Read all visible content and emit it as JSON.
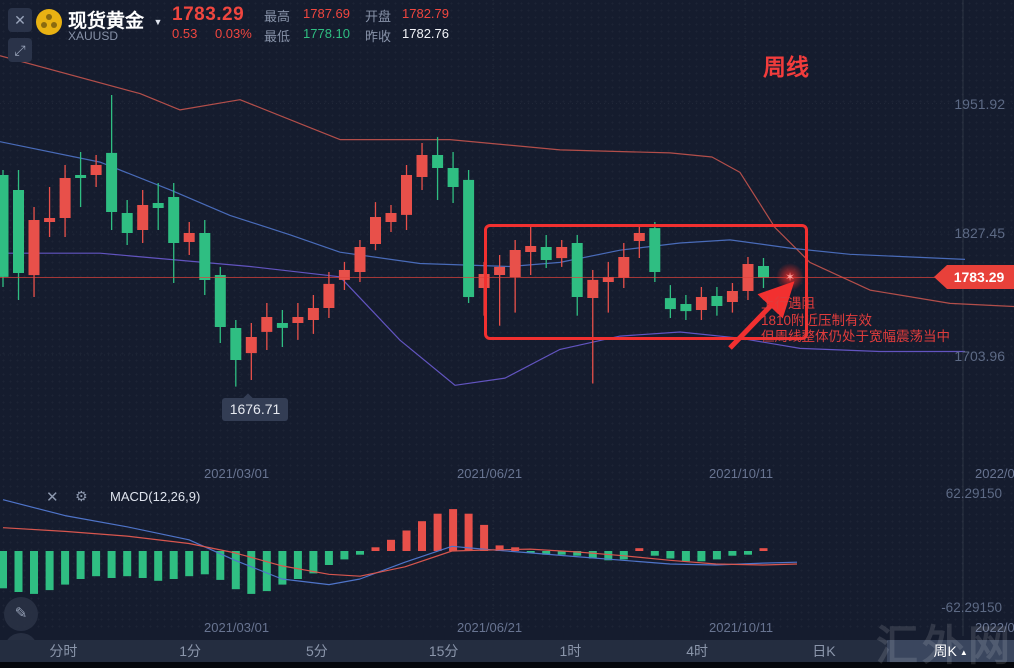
{
  "icons": {
    "close": "✕",
    "dropdown": "▼",
    "expand": "⤢",
    "gear": "⚙",
    "pencil": "✎",
    "up_triangle": "▲",
    "star": "✶"
  },
  "header": {
    "symbol_name": "现货黄金",
    "symbol_code": "XAUUSD",
    "price": "1783.29",
    "change": "0.53",
    "change_pct": "0.03%",
    "stats": [
      {
        "label": "最高",
        "value": "1787.69"
      },
      {
        "label": "最低",
        "value": "1778.10"
      },
      {
        "label": "开盘",
        "value": "1782.79"
      },
      {
        "label": "昨收",
        "value": "1782.76"
      }
    ]
  },
  "chart": {
    "period_label": "周线",
    "y_axis_labels": [
      {
        "text": "1951.92"
      },
      {
        "text": "1827.45"
      },
      {
        "text": "1703.96"
      }
    ],
    "price_tag": "1783.29",
    "low_tooltip": "1676.71",
    "x_axis_labels": [
      {
        "text": "2021/03/01"
      },
      {
        "text": "2021/06/21"
      },
      {
        "text": "2021/10/11"
      },
      {
        "text": "2022/0"
      }
    ],
    "annotation": {
      "lines": [
        "上行遇阻",
        "1810附近压制有效",
        "但周线整体仍处于宽幅震荡当中"
      ]
    }
  },
  "macd": {
    "label": "MACD(12,26,9)",
    "max": "62.29150",
    "min": "-62.29150"
  },
  "toolbar": {
    "items": [
      "分时",
      "1分",
      "5分",
      "15分",
      "1时",
      "4时",
      "日K",
      "周K"
    ],
    "selected": "周K",
    "selected_marker": "▲"
  },
  "watermark": "汇外网",
  "chart_data": {
    "type": "candlestick",
    "title": "现货黄金 XAUUSD 周线",
    "timeframe": "weekly",
    "current_price": 1783.29,
    "marked_low": 1676.71,
    "price_axis_labels": [
      1951.92,
      1827.45,
      1783.29,
      1703.96
    ],
    "x_dates": [
      "2021/03/01",
      "2021/06/21",
      "2021/10/11",
      "2022/0"
    ],
    "colors": {
      "up": "#e8504a",
      "down": "#2fbe82"
    },
    "candles": [
      [
        1883.4,
        1888.3,
        1774.0,
        1783.8
      ],
      [
        1868.8,
        1888.3,
        1761.3,
        1787.7
      ],
      [
        1785.7,
        1852.2,
        1764.2,
        1839.5
      ],
      [
        1837.5,
        1871.7,
        1822.9,
        1841.4
      ],
      [
        1841.4,
        1893.2,
        1822.9,
        1880.5
      ],
      [
        1883.4,
        1905.9,
        1852.2,
        1880.5
      ],
      [
        1883.4,
        1903.0,
        1871.7,
        1893.2
      ],
      [
        1905.0,
        1961.6,
        1829.7,
        1847.3
      ],
      [
        1846.3,
        1859.0,
        1815.0,
        1826.8
      ],
      [
        1829.7,
        1868.8,
        1817.0,
        1854.1
      ],
      [
        1856.1,
        1875.6,
        1829.7,
        1851.2
      ],
      [
        1861.9,
        1875.6,
        1777.9,
        1817.0
      ],
      [
        1818.0,
        1837.5,
        1805.3,
        1826.8
      ],
      [
        1826.8,
        1839.5,
        1766.2,
        1780.9
      ],
      [
        1785.7,
        1793.6,
        1719.3,
        1734.9
      ],
      [
        1734.0,
        1741.8,
        1676.7,
        1702.7
      ],
      [
        1709.5,
        1738.8,
        1683.1,
        1725.2
      ],
      [
        1730.1,
        1758.4,
        1712.5,
        1744.7
      ],
      [
        1738.8,
        1751.5,
        1715.4,
        1734.0
      ],
      [
        1738.8,
        1758.4,
        1722.3,
        1744.7
      ],
      [
        1741.8,
        1766.2,
        1728.2,
        1753.5
      ],
      [
        1753.5,
        1788.7,
        1743.7,
        1777.0
      ],
      [
        1780.9,
        1798.5,
        1771.1,
        1790.6
      ],
      [
        1788.7,
        1819.9,
        1778.9,
        1813.1
      ],
      [
        1816.0,
        1857.0,
        1810.0,
        1842.4
      ],
      [
        1837.5,
        1854.1,
        1827.7,
        1846.3
      ],
      [
        1844.4,
        1893.2,
        1829.7,
        1883.4
      ],
      [
        1881.5,
        1914.7,
        1868.8,
        1903.0
      ],
      [
        1903.0,
        1920.5,
        1859.0,
        1890.3
      ],
      [
        1890.3,
        1905.9,
        1856.1,
        1871.7
      ],
      [
        1878.6,
        1888.3,
        1758.4,
        1764.2
      ],
      [
        1773.0,
        1798.5,
        1746.0,
        1786.7
      ],
      [
        1785.7,
        1805.3,
        1736.2,
        1793.6
      ],
      [
        1783.8,
        1819.9,
        1749.0,
        1810.2
      ],
      [
        1808.2,
        1832.6,
        1785.7,
        1814.1
      ],
      [
        1813.1,
        1824.8,
        1792.6,
        1800.4
      ],
      [
        1802.3,
        1819.9,
        1793.6,
        1813.1
      ],
      [
        1817.0,
        1824.8,
        1746.0,
        1764.2
      ],
      [
        1763.2,
        1790.6,
        1679.7,
        1780.9
      ],
      [
        1778.9,
        1798.5,
        1749.0,
        1783.8
      ],
      [
        1782.8,
        1817.0,
        1773.0,
        1803.3
      ],
      [
        1819.0,
        1834.6,
        1802.3,
        1826.8
      ],
      [
        1831.6,
        1837.5,
        1778.9,
        1788.7
      ],
      [
        1763.2,
        1775.9,
        1743.7,
        1752.5
      ],
      [
        1757.4,
        1766.2,
        1741.8,
        1750.5
      ],
      [
        1751.5,
        1774.0,
        1741.8,
        1764.2
      ],
      [
        1765.2,
        1774.0,
        1746.0,
        1755.4
      ],
      [
        1759.4,
        1777.9,
        1749.0,
        1770.1
      ],
      [
        1770.1,
        1803.3,
        1761.3,
        1796.5
      ],
      [
        1794.5,
        1802.3,
        1773.0,
        1783.3
      ]
    ],
    "indicators": {
      "bollinger_upper": {
        "color": "#c4544e",
        "points": [
          [
            0,
            2000
          ],
          [
            140,
            1963
          ],
          [
            180,
            1947
          ],
          [
            240,
            1957
          ],
          [
            340,
            1918
          ],
          [
            450,
            1918
          ],
          [
            560,
            1908
          ],
          [
            670,
            1905
          ],
          [
            712,
            1901
          ],
          [
            740,
            1886
          ],
          [
            775,
            1832
          ],
          [
            810,
            1798
          ],
          [
            870,
            1771
          ],
          [
            950,
            1758
          ],
          [
            1014,
            1755
          ]
        ]
      },
      "ma_middle": {
        "color": "#4f74c9",
        "points": [
          [
            0,
            1916
          ],
          [
            100,
            1896
          ],
          [
            170,
            1869
          ],
          [
            230,
            1844
          ],
          [
            290,
            1825
          ],
          [
            340,
            1808
          ],
          [
            420,
            1797
          ],
          [
            510,
            1794
          ],
          [
            560,
            1798
          ],
          [
            620,
            1810
          ],
          [
            680,
            1817
          ],
          [
            730,
            1820
          ],
          [
            790,
            1812
          ],
          [
            850,
            1806
          ],
          [
            965,
            1801
          ]
        ]
      },
      "bollinger_lower": {
        "color": "#6a5bd0",
        "points": [
          [
            0,
            1807
          ],
          [
            100,
            1807
          ],
          [
            250,
            1794
          ],
          [
            340,
            1784
          ],
          [
            400,
            1722
          ],
          [
            455,
            1678
          ],
          [
            505,
            1685
          ],
          [
            560,
            1713
          ],
          [
            620,
            1726
          ],
          [
            680,
            1730
          ],
          [
            740,
            1724
          ],
          [
            800,
            1714
          ],
          [
            880,
            1711
          ],
          [
            965,
            1711
          ]
        ]
      }
    },
    "macd": {
      "params": "12,26,9",
      "axis_range": [
        -62.2915,
        62.2915
      ],
      "histogram": [
        -40,
        -44,
        -46,
        -42,
        -36,
        -30,
        -27,
        -29,
        -27,
        -29,
        -32,
        -30,
        -27,
        -25,
        -31,
        -41,
        -46,
        -43,
        -36,
        -30,
        -24,
        -15,
        -9,
        -4,
        4,
        12,
        22,
        32,
        40,
        45,
        40,
        28,
        6,
        4,
        -2,
        -4,
        -4,
        -5,
        -8,
        -10,
        -9,
        3,
        -5,
        -8,
        -11,
        -11,
        -9,
        -5,
        -4,
        3
      ],
      "dif": [
        [
          3,
          55
        ],
        [
          65,
          38
        ],
        [
          127,
          26
        ],
        [
          189,
          12
        ],
        [
          235,
          -10
        ],
        [
          282,
          -30
        ],
        [
          329,
          -36
        ],
        [
          360,
          -30
        ],
        [
          405,
          -12
        ],
        [
          452,
          5
        ],
        [
          483,
          2
        ],
        [
          530,
          -2
        ],
        [
          576,
          -6
        ],
        [
          623,
          -10
        ],
        [
          670,
          -14
        ],
        [
          716,
          -15
        ],
        [
          763,
          -13
        ],
        [
          797,
          -12
        ]
      ],
      "dea": [
        [
          3,
          25
        ],
        [
          65,
          21
        ],
        [
          127,
          16
        ],
        [
          189,
          8
        ],
        [
          235,
          -2
        ],
        [
          282,
          -16
        ],
        [
          329,
          -25
        ],
        [
          360,
          -27
        ],
        [
          405,
          -17
        ],
        [
          452,
          0
        ],
        [
          483,
          1
        ],
        [
          530,
          2
        ],
        [
          576,
          -1
        ],
        [
          623,
          -5
        ],
        [
          670,
          -10
        ],
        [
          716,
          -14
        ],
        [
          763,
          -15
        ],
        [
          797,
          -14
        ]
      ]
    }
  }
}
